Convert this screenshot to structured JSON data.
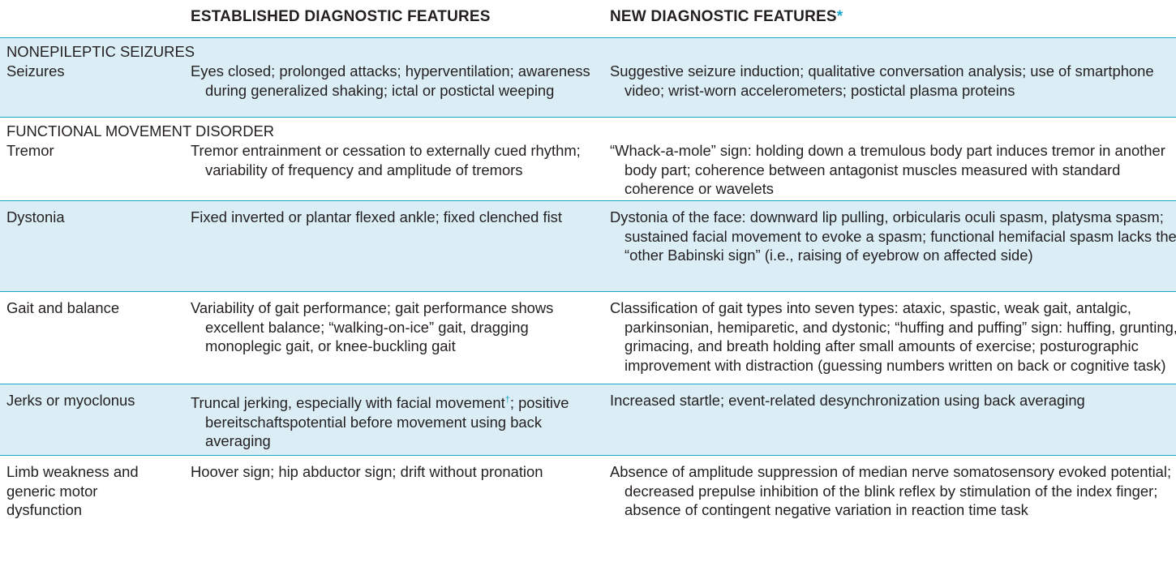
{
  "header": {
    "established": "ESTABLISHED DIAGNOSTIC FEATURES",
    "new": "NEW DIAGNOSTIC FEATURES",
    "new_marker": "*"
  },
  "sections": [
    {
      "title": "NONEPILEPTIC SEIZURES",
      "rows": [
        {
          "label": "Seizures",
          "established": "Eyes closed; prolonged attacks; hyperventilation; awareness during generalized shaking; ictal or postictal weeping",
          "new": "Suggestive seizure induction; qualitative conversation analysis; use of smartphone video; wrist-worn accelerometers; postictal plasma proteins"
        }
      ]
    },
    {
      "title": "FUNCTIONAL MOVEMENT DISORDER",
      "rows": [
        {
          "label": "Tremor",
          "established": "Tremor entrainment or cessation to externally cued rhythm; variability of frequency and amplitude of tremors",
          "new": "“Whack-a-mole” sign: holding down a tremulous body part induces tremor in another body part; coherence between antagonist muscles measured with standard coherence or wavelets"
        },
        {
          "label": "Dystonia",
          "established": "Fixed inverted or plantar flexed ankle; fixed clenched fist",
          "new": "Dystonia of the face: downward lip pulling, orbicularis oculi spasm, platysma spasm; sustained facial movement to evoke a spasm; functional hemifacial spasm lacks the “other Babinski sign” (i.e., raising of eyebrow on affected side)"
        },
        {
          "label": "Gait and balance",
          "established": "Variability of gait performance; gait performance shows excellent balance; “walking-on-ice” gait, dragging monoplegic gait, or knee-buckling gait",
          "new": "Classification of gait types into seven types: ataxic, spastic, weak gait, antalgic, parkinsonian, hemiparetic, and dystonic; “huffing and puffing” sign: huffing, grunting, grimacing, and breath holding after small amounts of exercise; posturographic improvement with distraction (guessing numbers written on back or cognitive task)"
        },
        {
          "label": "Jerks or myoclonus",
          "established_a": "Truncal jerking, especially with facial movement",
          "established_dagger": "†",
          "established_b": "; positive bereitschaftspotential before movement using back averaging",
          "new": "Increased startle; event-related desynchronization using back averaging"
        },
        {
          "label": "Limb weakness and generic motor dysfunction",
          "established": "Hoover sign; hip abductor sign; drift without pronation",
          "new": "Absence of amplitude suppression of median nerve somatosensory evoked potential; decreased prepulse inhibition of the blink reflex by stimulation of the index finger; absence of contingent negative variation in reaction time task"
        }
      ]
    }
  ]
}
